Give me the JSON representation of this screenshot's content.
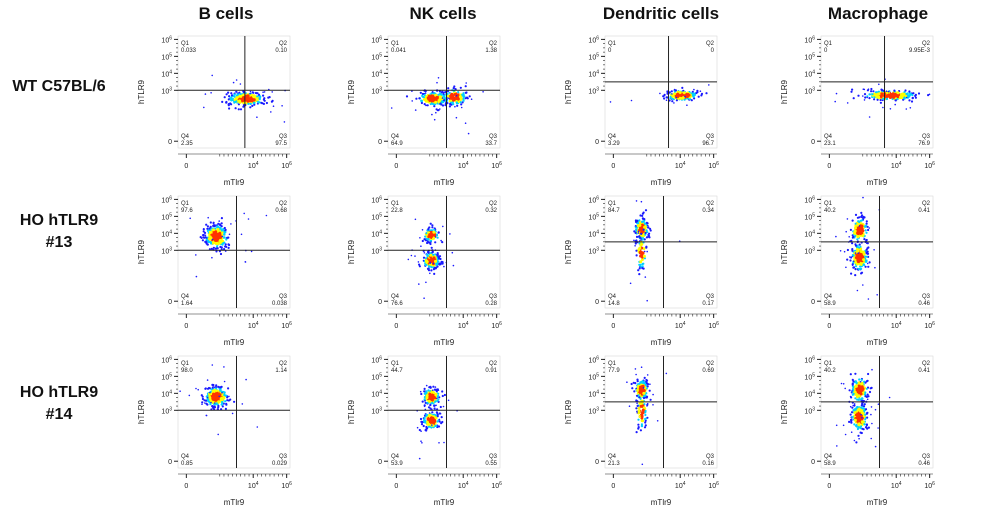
{
  "columns": [
    "B cells",
    "NK cells",
    "Dendritic cells",
    "Macrophage"
  ],
  "rows": [
    {
      "line1": "WT C57BL/6",
      "line2": ""
    },
    {
      "line1": "HO hTLR9",
      "line2": "#13"
    },
    {
      "line1": "HO hTLR9",
      "line2": "#14"
    }
  ],
  "colors": {
    "low": "#1a1aff",
    "mid": "#00d0ff",
    "high": "#ffff00",
    "peak": "#ff3300",
    "gate": "#222222"
  },
  "chart_data": {
    "type": "scatter",
    "subtype": "flow-cytometry-density-plot",
    "xlabel": "mTlr9",
    "ylabel": "hTLR9",
    "x_ticks": [
      "0",
      "10^4",
      "10^6"
    ],
    "y_ticks": [
      "0",
      "10^3",
      "10^4",
      "10^5",
      "10^6"
    ],
    "panels": [
      {
        "row": 0,
        "col": 0,
        "cell": "B cells",
        "sample": "WT C57BL/6",
        "gate_x": 3.5,
        "gate_y": 3.0,
        "quadrants": {
          "Q1": "0.033",
          "Q2": "0.10",
          "Q3": "97.5",
          "Q4": "2.35"
        },
        "clusters": [
          {
            "x": 3.6,
            "y": 2.5,
            "sx": 0.55,
            "sy": 0.2,
            "n": 260
          }
        ]
      },
      {
        "row": 0,
        "col": 1,
        "cell": "NK cells",
        "sample": "WT C57BL/6",
        "gate_x": 3.0,
        "gate_y": 3.0,
        "quadrants": {
          "Q1": "0.041",
          "Q2": "1.38",
          "Q3": "33.7",
          "Q4": "64.9"
        },
        "clusters": [
          {
            "x": 2.2,
            "y": 2.5,
            "sx": 0.45,
            "sy": 0.2,
            "n": 170
          },
          {
            "x": 3.5,
            "y": 2.6,
            "sx": 0.35,
            "sy": 0.25,
            "n": 120
          }
        ]
      },
      {
        "row": 0,
        "col": 2,
        "cell": "Dendritic cells",
        "sample": "WT C57BL/6",
        "gate_x": 3.3,
        "gate_y": 3.5,
        "quadrants": {
          "Q1": "0",
          "Q2": "0",
          "Q3": "96.7",
          "Q4": "3.29"
        },
        "clusters": [
          {
            "x": 4.1,
            "y": 2.7,
            "sx": 0.5,
            "sy": 0.15,
            "n": 150
          }
        ]
      },
      {
        "row": 0,
        "col": 3,
        "cell": "Macrophage",
        "sample": "WT C57BL/6",
        "gate_x": 3.3,
        "gate_y": 3.5,
        "quadrants": {
          "Q1": "0",
          "Q2": "9.95E-3",
          "Q3": "76.9",
          "Q4": "23.1"
        },
        "clusters": [
          {
            "x": 3.6,
            "y": 2.7,
            "sx": 0.8,
            "sy": 0.15,
            "n": 220
          }
        ]
      },
      {
        "row": 1,
        "col": 0,
        "cell": "B cells",
        "sample": "HO hTLR9 #13",
        "gate_x": 3.0,
        "gate_y": 3.0,
        "quadrants": {
          "Q1": "97.6",
          "Q2": "0.68",
          "Q3": "0.038",
          "Q4": "1.64"
        },
        "clusters": [
          {
            "x": 1.8,
            "y": 3.8,
            "sx": 0.35,
            "sy": 0.35,
            "n": 260
          }
        ]
      },
      {
        "row": 1,
        "col": 1,
        "cell": "NK cells",
        "sample": "HO hTLR9 #13",
        "gate_x": 3.0,
        "gate_y": 3.0,
        "quadrants": {
          "Q1": "22.8",
          "Q2": "0.32",
          "Q3": "0.28",
          "Q4": "76.6"
        },
        "clusters": [
          {
            "x": 2.1,
            "y": 3.9,
            "sx": 0.25,
            "sy": 0.2,
            "n": 110
          },
          {
            "x": 2.1,
            "y": 2.4,
            "sx": 0.25,
            "sy": 0.25,
            "n": 170
          }
        ]
      },
      {
        "row": 1,
        "col": 2,
        "cell": "Dendritic cells",
        "sample": "HO hTLR9 #13",
        "gate_x": 3.0,
        "gate_y": 3.5,
        "quadrants": {
          "Q1": "84.7",
          "Q2": "0.34",
          "Q3": "0.17",
          "Q4": "14.8"
        },
        "clusters": [
          {
            "x": 1.7,
            "y": 4.2,
            "sx": 0.2,
            "sy": 0.35,
            "n": 140
          },
          {
            "x": 1.7,
            "y": 2.9,
            "sx": 0.15,
            "sy": 0.5,
            "n": 50
          }
        ]
      },
      {
        "row": 1,
        "col": 3,
        "cell": "Macrophage",
        "sample": "HO hTLR9 #13",
        "gate_x": 3.0,
        "gate_y": 3.5,
        "quadrants": {
          "Q1": "40.2",
          "Q2": "0.41",
          "Q3": "0.46",
          "Q4": "58.9"
        },
        "clusters": [
          {
            "x": 1.8,
            "y": 4.2,
            "sx": 0.25,
            "sy": 0.35,
            "n": 130
          },
          {
            "x": 1.8,
            "y": 2.6,
            "sx": 0.25,
            "sy": 0.4,
            "n": 170
          }
        ]
      },
      {
        "row": 2,
        "col": 0,
        "cell": "B cells",
        "sample": "HO hTLR9 #14",
        "gate_x": 3.0,
        "gate_y": 3.0,
        "quadrants": {
          "Q1": "98.0",
          "Q2": "1.14",
          "Q3": "0.029",
          "Q4": "0.85"
        },
        "clusters": [
          {
            "x": 1.8,
            "y": 3.8,
            "sx": 0.35,
            "sy": 0.3,
            "n": 260
          }
        ]
      },
      {
        "row": 2,
        "col": 1,
        "cell": "NK cells",
        "sample": "HO hTLR9 #14",
        "gate_x": 3.0,
        "gate_y": 3.0,
        "quadrants": {
          "Q1": "44.7",
          "Q2": "0.91",
          "Q3": "0.55",
          "Q4": "53.9"
        },
        "clusters": [
          {
            "x": 2.1,
            "y": 3.8,
            "sx": 0.25,
            "sy": 0.25,
            "n": 140
          },
          {
            "x": 2.1,
            "y": 2.4,
            "sx": 0.25,
            "sy": 0.25,
            "n": 150
          }
        ]
      },
      {
        "row": 2,
        "col": 2,
        "cell": "Dendritic cells",
        "sample": "HO hTLR9 #14",
        "gate_x": 3.0,
        "gate_y": 3.5,
        "quadrants": {
          "Q1": "77.9",
          "Q2": "0.69",
          "Q3": "0.16",
          "Q4": "21.3"
        },
        "clusters": [
          {
            "x": 1.7,
            "y": 4.2,
            "sx": 0.2,
            "sy": 0.3,
            "n": 130
          },
          {
            "x": 1.7,
            "y": 2.9,
            "sx": 0.15,
            "sy": 0.5,
            "n": 60
          }
        ]
      },
      {
        "row": 2,
        "col": 3,
        "cell": "Macrophage",
        "sample": "HO hTLR9 #14",
        "gate_x": 3.0,
        "gate_y": 3.5,
        "quadrants": {
          "Q1": "40.2",
          "Q2": "0.41",
          "Q3": "0.46",
          "Q4": "58.9"
        },
        "clusters": [
          {
            "x": 1.8,
            "y": 4.2,
            "sx": 0.25,
            "sy": 0.35,
            "n": 130
          },
          {
            "x": 1.8,
            "y": 2.6,
            "sx": 0.25,
            "sy": 0.4,
            "n": 170
          }
        ]
      }
    ]
  }
}
